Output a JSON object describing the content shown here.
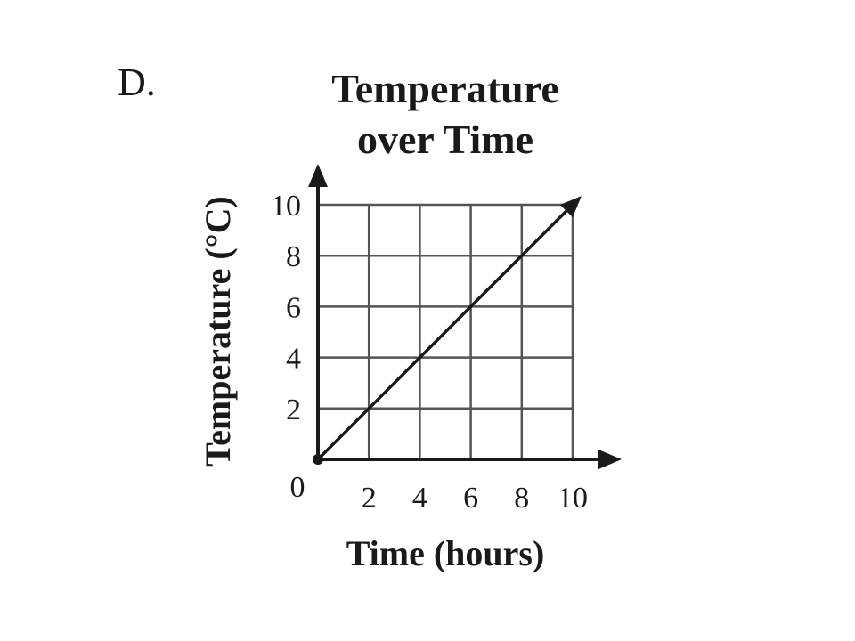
{
  "option_label": "D.",
  "chart_data": {
    "type": "line",
    "title_lines": [
      "Temperature",
      "over Time"
    ],
    "xlabel": "Time (hours)",
    "ylabel": "Temperature (°C)",
    "xlim": [
      0,
      10
    ],
    "ylim": [
      0,
      10
    ],
    "x_ticks": [
      2,
      4,
      6,
      8,
      10
    ],
    "y_ticks": [
      2,
      4,
      6,
      8,
      10
    ],
    "origin_label": "0",
    "grid": true,
    "series": [
      {
        "x": [
          0,
          2,
          4,
          6,
          8,
          10
        ],
        "y": [
          0,
          2,
          4,
          6,
          8,
          10
        ]
      }
    ],
    "colors": {
      "line": "#1a1a1a",
      "grid": "#555555",
      "axis": "#1a1a1a"
    }
  }
}
